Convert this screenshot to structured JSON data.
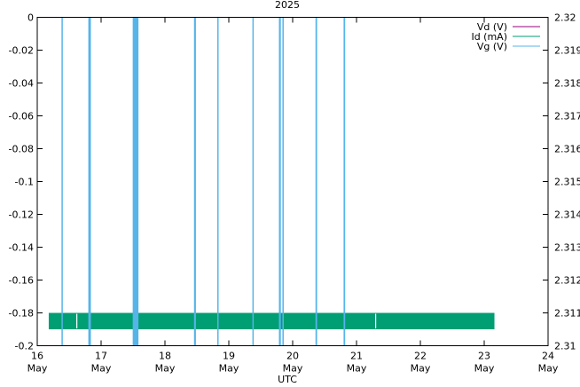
{
  "chart_data": {
    "type": "line",
    "title": "2025",
    "xlabel": "UTC",
    "x_ticks": [
      {
        "day": "16",
        "month": "May"
      },
      {
        "day": "17",
        "month": "May"
      },
      {
        "day": "18",
        "month": "May"
      },
      {
        "day": "19",
        "month": "May"
      },
      {
        "day": "20",
        "month": "May"
      },
      {
        "day": "21",
        "month": "May"
      },
      {
        "day": "22",
        "month": "May"
      },
      {
        "day": "23",
        "month": "May"
      },
      {
        "day": "24",
        "month": "May"
      }
    ],
    "xlim": [
      "2025-05-16",
      "2025-05-24"
    ],
    "y_left_ticks": [
      "0",
      "-0.02",
      "-0.04",
      "-0.06",
      "-0.08",
      "-0.1",
      "-0.12",
      "-0.14",
      "-0.16",
      "-0.18",
      "-0.2"
    ],
    "ylim_left": [
      -0.2,
      0
    ],
    "y_right_ticks": [
      "2.32",
      "2.319",
      "2.318",
      "2.317",
      "2.316",
      "2.315",
      "2.314",
      "2.313",
      "2.312",
      "2.311",
      "2.31"
    ],
    "ylim_right": [
      2.31,
      2.32
    ],
    "legend_position": "top-right",
    "grid": false,
    "series": [
      {
        "name": "Vd (V)",
        "color": "#94007f",
        "axis": "left",
        "values": []
      },
      {
        "name": "Id (mA)",
        "color": "#009e73",
        "axis": "left",
        "band": {
          "x_start": 16.18,
          "x_end": 23.16,
          "y_min": -0.19,
          "y_max": -0.18
        },
        "gaps": [
          16.62,
          21.3
        ]
      },
      {
        "name": "Vg (V)",
        "color": "#56b4e9",
        "axis": "right",
        "baseline": 2.32,
        "spikes": [
          {
            "x": 16.39,
            "width": 0.02,
            "low": 2.31
          },
          {
            "x": 16.82,
            "width": 0.04,
            "low": 2.31
          },
          {
            "x": 17.52,
            "width": 0.05,
            "low": 2.31
          },
          {
            "x": 17.56,
            "width": 0.05,
            "low": 2.31
          },
          {
            "x": 18.47,
            "width": 0.03,
            "low": 2.31
          },
          {
            "x": 18.83,
            "width": 0.015,
            "low": 2.31
          },
          {
            "x": 19.38,
            "width": 0.015,
            "low": 2.31
          },
          {
            "x": 19.8,
            "width": 0.03,
            "low": 2.31
          },
          {
            "x": 19.85,
            "width": 0.015,
            "low": 2.31
          },
          {
            "x": 20.37,
            "width": 0.025,
            "low": 2.31
          },
          {
            "x": 20.81,
            "width": 0.025,
            "low": 2.31
          }
        ]
      }
    ]
  }
}
